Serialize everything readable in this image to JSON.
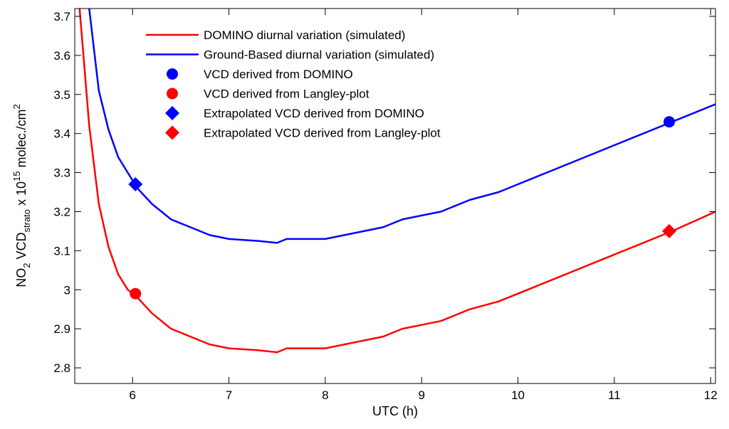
{
  "chart_data": {
    "type": "line",
    "title": "",
    "xlabel": "UTC (h)",
    "ylabel": {
      "pre": "NO",
      "sub1": "2",
      "mid": " VCD",
      "sub2": "strato",
      "post": " x 10",
      "sup1": "15",
      "post2": " molec./cm",
      "sup2": "2"
    },
    "xlim": [
      5.4,
      12.05
    ],
    "ylim": [
      2.76,
      3.72
    ],
    "xticks": [
      6,
      7,
      8,
      9,
      10,
      11,
      12
    ],
    "xtick_labels": [
      "6",
      "7",
      "8",
      "9",
      "10",
      "11",
      "12"
    ],
    "yticks": [
      2.8,
      2.9,
      3.0,
      3.1,
      3.2,
      3.3,
      3.4,
      3.5,
      3.6,
      3.7
    ],
    "ytick_labels": [
      "2.8",
      "2.9",
      "3",
      "3.1",
      "3.2",
      "3.3",
      "3.4",
      "3.5",
      "3.6",
      "3.7"
    ],
    "grid": false,
    "legend_position": "top-center",
    "series": [
      {
        "name": "DOMINO diurnal variation (simulated)",
        "color": "#ff0000",
        "style": "line",
        "x": [
          5.45,
          5.55,
          5.65,
          5.75,
          5.85,
          5.95,
          6.05,
          6.2,
          6.4,
          6.6,
          6.8,
          7.0,
          7.3,
          7.5,
          7.6,
          7.8,
          8.0,
          8.2,
          8.4,
          8.6,
          8.8,
          9.0,
          9.2,
          9.5,
          9.8,
          10.0,
          10.5,
          11.0,
          11.5,
          11.6,
          12.05
        ],
        "values": [
          3.72,
          3.42,
          3.22,
          3.11,
          3.04,
          3.0,
          2.98,
          2.94,
          2.9,
          2.88,
          2.86,
          2.85,
          2.845,
          2.84,
          2.85,
          2.85,
          2.85,
          2.86,
          2.87,
          2.88,
          2.9,
          2.91,
          2.92,
          2.95,
          2.97,
          2.99,
          3.04,
          3.09,
          3.14,
          3.15,
          3.2
        ]
      },
      {
        "name": "Ground-Based diurnal variation (simulated)",
        "color": "#0000ff",
        "style": "line",
        "x": [
          5.55,
          5.65,
          5.75,
          5.85,
          5.95,
          6.05,
          6.2,
          6.4,
          6.6,
          6.8,
          7.0,
          7.3,
          7.5,
          7.6,
          7.8,
          8.0,
          8.2,
          8.4,
          8.6,
          8.8,
          9.0,
          9.2,
          9.5,
          9.8,
          10.0,
          10.5,
          11.0,
          11.5,
          11.6,
          12.05
        ],
        "values": [
          3.72,
          3.51,
          3.41,
          3.34,
          3.3,
          3.26,
          3.22,
          3.18,
          3.16,
          3.14,
          3.13,
          3.125,
          3.12,
          3.13,
          3.13,
          3.13,
          3.14,
          3.15,
          3.16,
          3.18,
          3.19,
          3.2,
          3.23,
          3.25,
          3.27,
          3.32,
          3.37,
          3.42,
          3.43,
          3.475
        ]
      },
      {
        "name": "VCD derived from DOMINO",
        "color": "#0000ff",
        "style": "circle",
        "x": [
          11.57
        ],
        "values": [
          3.43
        ]
      },
      {
        "name": "VCD derived from Langley-plot",
        "color": "#ff0000",
        "style": "circle",
        "x": [
          6.03
        ],
        "values": [
          2.99
        ]
      },
      {
        "name": "Extrapolated VCD derived from DOMINO",
        "color": "#0000ff",
        "style": "diamond",
        "x": [
          6.03
        ],
        "values": [
          3.27
        ]
      },
      {
        "name": "Extrapolated VCD derived from Langley-plot",
        "color": "#ff0000",
        "style": "diamond",
        "x": [
          11.57
        ],
        "values": [
          3.15
        ]
      }
    ]
  }
}
